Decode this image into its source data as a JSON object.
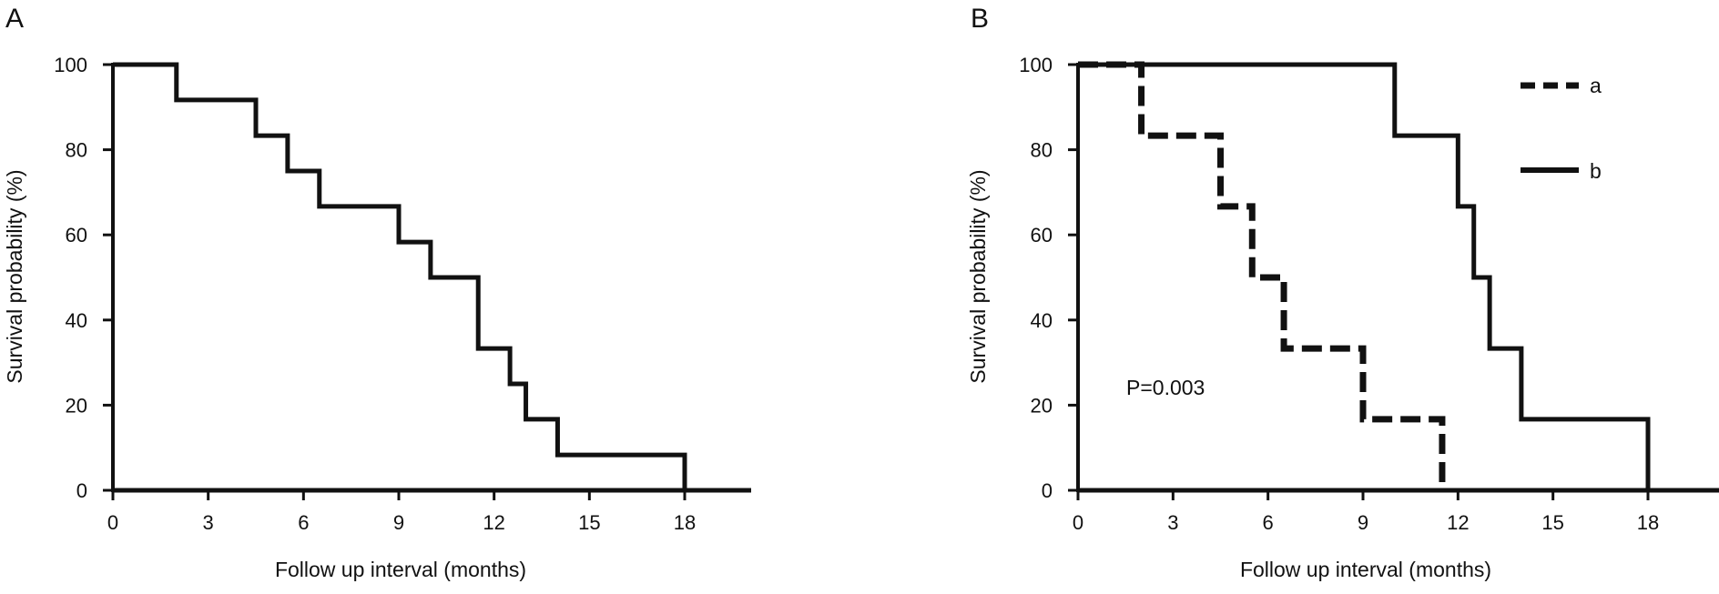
{
  "chart_data": [
    {
      "panel": "A",
      "type": "line",
      "step": true,
      "title": "",
      "xlabel": "Follow up interval (months)",
      "ylabel": "Survival probability (%)",
      "xlim": [
        0,
        20
      ],
      "ylim": [
        0,
        100
      ],
      "xticks": [
        "0",
        "3",
        "6",
        "9",
        "12",
        "15",
        "18"
      ],
      "yticks": [
        "0",
        "20",
        "40",
        "60",
        "80",
        "100"
      ],
      "grid": false,
      "legend": null,
      "series": [
        {
          "style": "solid",
          "x": [
            0,
            2,
            4.5,
            5.5,
            6.5,
            9,
            10,
            11.5,
            12.5,
            13,
            14,
            18,
            18
          ],
          "y": [
            100,
            91.7,
            83.3,
            75,
            66.7,
            58.3,
            50,
            33.3,
            25,
            16.7,
            8.3,
            8.3,
            0
          ]
        }
      ]
    },
    {
      "panel": "B",
      "type": "line",
      "step": true,
      "title": "",
      "xlabel": "Follow up interval (months)",
      "ylabel": "Survival probability (%)",
      "xlim": [
        0,
        20
      ],
      "ylim": [
        0,
        100
      ],
      "xticks": [
        "0",
        "3",
        "6",
        "9",
        "12",
        "15",
        "18"
      ],
      "yticks": [
        "0",
        "20",
        "40",
        "60",
        "80",
        "100"
      ],
      "grid": false,
      "legend": "top-right",
      "annotation": "P=0.003",
      "series": [
        {
          "name": "a",
          "style": "dashed",
          "x": [
            0,
            2,
            4.5,
            5.5,
            6.5,
            9,
            11.5,
            11.5
          ],
          "y": [
            100,
            83.3,
            66.7,
            50,
            33.3,
            16.7,
            16.7,
            0
          ]
        },
        {
          "name": "b",
          "style": "solid",
          "x": [
            0,
            10,
            12,
            12.5,
            13,
            14,
            18,
            18
          ],
          "y": [
            100,
            83.3,
            66.7,
            50,
            33.3,
            16.7,
            16.7,
            0
          ]
        }
      ]
    }
  ]
}
